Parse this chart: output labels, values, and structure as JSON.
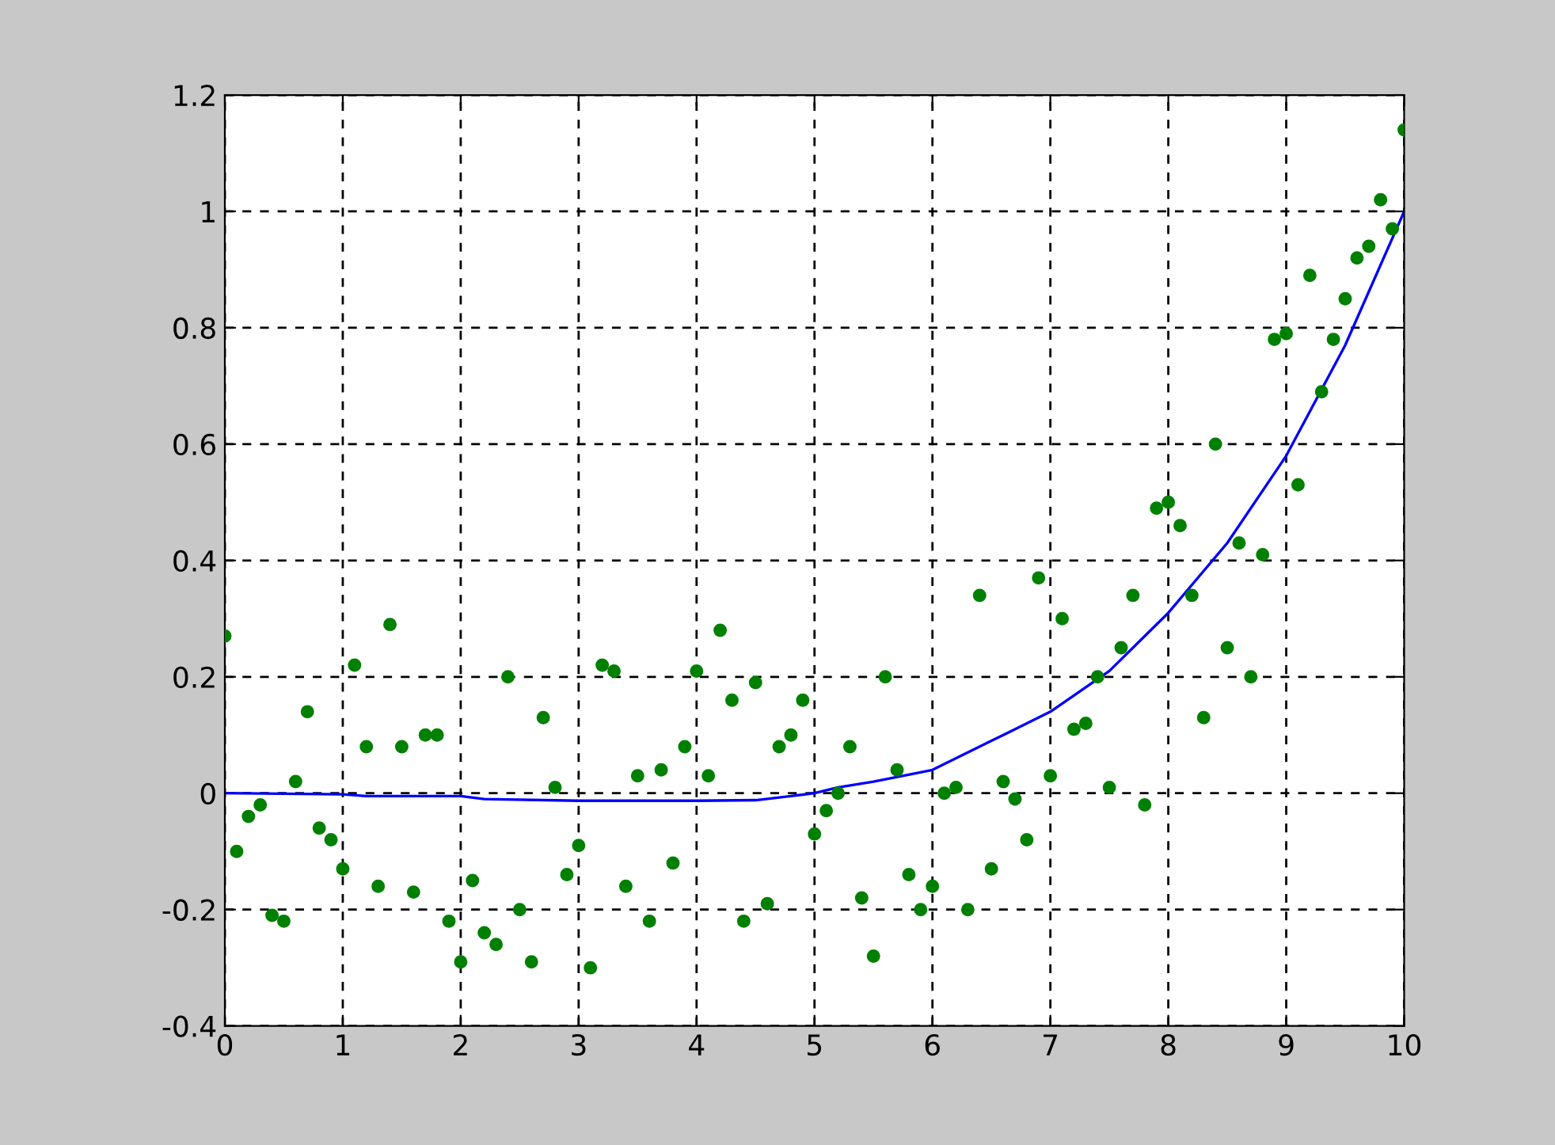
{
  "chart_data": {
    "type": "scatter",
    "xlim": [
      0,
      10
    ],
    "ylim": [
      -0.4,
      1.2
    ],
    "xticks": [
      0,
      1,
      2,
      3,
      4,
      5,
      6,
      7,
      8,
      9,
      10
    ],
    "yticks": [
      -0.4,
      -0.2,
      0,
      0.2,
      0.4,
      0.6,
      0.8,
      1,
      1.2
    ],
    "grid": true,
    "series": [
      {
        "marker": "circle",
        "color": "#008000",
        "x": [
          0,
          0.1,
          0.2,
          0.3,
          0.4,
          0.5,
          0.6,
          0.7,
          0.8,
          0.9,
          1,
          1.1,
          1.2,
          1.3,
          1.4,
          1.5,
          1.6,
          1.7,
          1.8,
          1.9,
          2,
          2.1,
          2.2,
          2.3,
          2.4,
          2.5,
          2.6,
          2.7,
          2.8,
          2.9,
          3,
          3.1,
          3.2,
          3.3,
          3.4,
          3.5,
          3.6,
          3.7,
          3.8,
          3.9,
          4,
          4.1,
          4.2,
          4.3,
          4.4,
          4.5,
          4.6,
          4.7,
          4.8,
          4.9,
          5,
          5.1,
          5.2,
          5.3,
          5.4,
          5.5,
          5.6,
          5.7,
          5.8,
          5.9,
          6,
          6.1,
          6.2,
          6.3,
          6.4,
          6.5,
          6.6,
          6.7,
          6.8,
          6.9,
          7,
          7.1,
          7.2,
          7.3,
          7.4,
          7.5,
          7.6,
          7.7,
          7.8,
          7.9,
          8,
          8.1,
          8.2,
          8.3,
          8.4,
          8.5,
          8.6,
          8.7,
          8.8,
          8.9,
          9,
          9.1,
          9.2,
          9.3,
          9.4,
          9.5,
          9.6,
          9.7,
          9.8,
          9.9,
          10
        ],
        "values": [
          0.27,
          -0.1,
          -0.04,
          -0.02,
          -0.21,
          -0.22,
          0.02,
          0.14,
          -0.06,
          -0.08,
          -0.13,
          0.22,
          0.08,
          -0.16,
          0.29,
          0.08,
          -0.17,
          0.1,
          0.1,
          -0.22,
          -0.29,
          -0.15,
          -0.24,
          -0.26,
          0.2,
          -0.2,
          -0.29,
          0.13,
          0.01,
          -0.14,
          -0.09,
          -0.3,
          0.22,
          0.21,
          -0.16,
          0.03,
          -0.22,
          0.04,
          -0.12,
          0.08,
          0.21,
          0.03,
          0.28,
          0.16,
          -0.22,
          0.19,
          -0.19,
          0.08,
          0.1,
          0.16,
          -0.07,
          -0.03,
          0,
          0.08,
          -0.18,
          -0.28,
          0.2,
          0.04,
          -0.14,
          -0.2,
          -0.16,
          0,
          0.01,
          -0.2,
          0.34,
          -0.13,
          0.02,
          -0.01,
          -0.08,
          0.37,
          0.03,
          0.3,
          0.11,
          0.12,
          0.2,
          0.01,
          0.25,
          0.34,
          -0.02,
          0.49,
          0.5,
          0.46,
          0.34,
          0.13,
          0.6,
          0.25,
          0.43,
          0.2,
          0.41,
          0.78,
          0.79,
          0.53,
          0.89,
          0.69,
          0.78,
          0.85,
          0.92,
          0.94,
          1.02,
          0.97,
          1.14
        ]
      },
      {
        "type": "line",
        "marker": "none",
        "line_style": "solid",
        "color": "#0000ff",
        "x": [
          0,
          1,
          1.2,
          2,
          2.2,
          3,
          4,
          4.5,
          4.8,
          5,
          5.2,
          5.5,
          6,
          6.5,
          7,
          7.5,
          8,
          8.5,
          9,
          9.5,
          10
        ],
        "values": [
          0,
          -0.002,
          -0.005,
          -0.005,
          -0.01,
          -0.013,
          -0.013,
          -0.012,
          -0.005,
          0,
          0.01,
          0.02,
          0.04,
          0.09,
          0.14,
          0.21,
          0.31,
          0.43,
          0.58,
          0.77,
          1.0
        ]
      }
    ]
  }
}
